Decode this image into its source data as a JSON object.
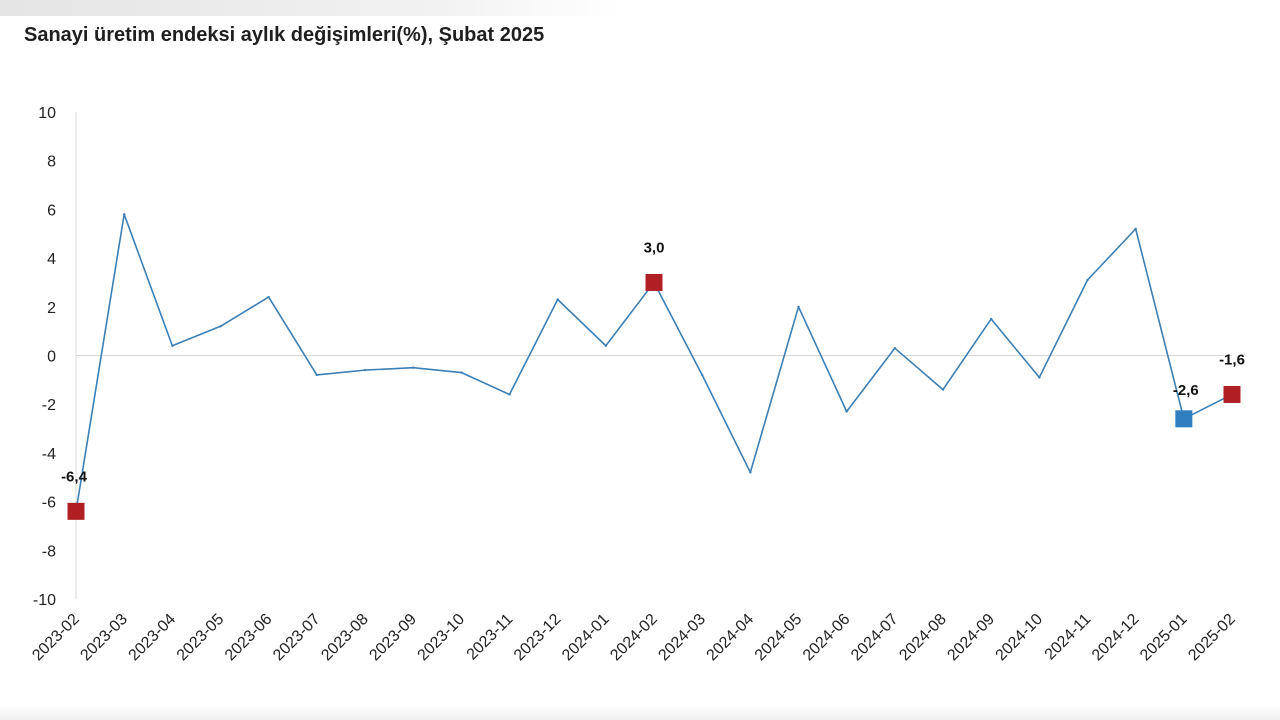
{
  "chart_data": {
    "type": "line",
    "title": "Sanayi üretim endeksi aylık değişimleri(%), Şubat 2025",
    "xlabel": "",
    "ylabel": "",
    "ylim": [
      -10,
      10
    ],
    "yticks": [
      10,
      8,
      6,
      4,
      2,
      0,
      -2,
      -4,
      -6,
      -8,
      -10
    ],
    "y_tick_labels": [
      "10",
      "8",
      "6",
      "4",
      "2",
      "0",
      "-2",
      "-4",
      "-6",
      "-8",
      "-10"
    ],
    "categories": [
      "2023-02",
      "2023-03",
      "2023-04",
      "2023-05",
      "2023-06",
      "2023-07",
      "2023-08",
      "2023-09",
      "2023-10",
      "2023-11",
      "2023-12",
      "2024-01",
      "2024-02",
      "2024-03",
      "2024-04",
      "2024-05",
      "2024-06",
      "2024-07",
      "2024-08",
      "2024-09",
      "2024-10",
      "2024-11",
      "2024-12",
      "2025-01",
      "2025-02"
    ],
    "series": [
      {
        "values": [
          -6.4,
          5.8,
          0.4,
          1.2,
          2.4,
          -0.8,
          -0.6,
          -0.5,
          -0.7,
          -1.6,
          2.3,
          0.4,
          3.0,
          -0.8,
          -4.8,
          2.0,
          -2.3,
          0.3,
          -1.4,
          1.5,
          -0.9,
          3.1,
          5.2,
          -2.6,
          -1.6
        ],
        "color": "#3c7fb5"
      }
    ],
    "highlighted_points": [
      {
        "category": "2023-02",
        "value": -6.4,
        "label": "-6,4",
        "color": "#b01f24",
        "marker": "square"
      },
      {
        "category": "2024-02",
        "value": 3.0,
        "label": "3,0",
        "color": "#b01f24",
        "marker": "square"
      },
      {
        "category": "2025-01",
        "value": -2.6,
        "label": "-2,6",
        "color": "#2f7fc1",
        "marker": "square"
      },
      {
        "category": "2025-02",
        "value": -1.6,
        "label": "-1,6",
        "color": "#b01f24",
        "marker": "square"
      }
    ],
    "grid": false,
    "zero_line": true,
    "legend": "none"
  }
}
